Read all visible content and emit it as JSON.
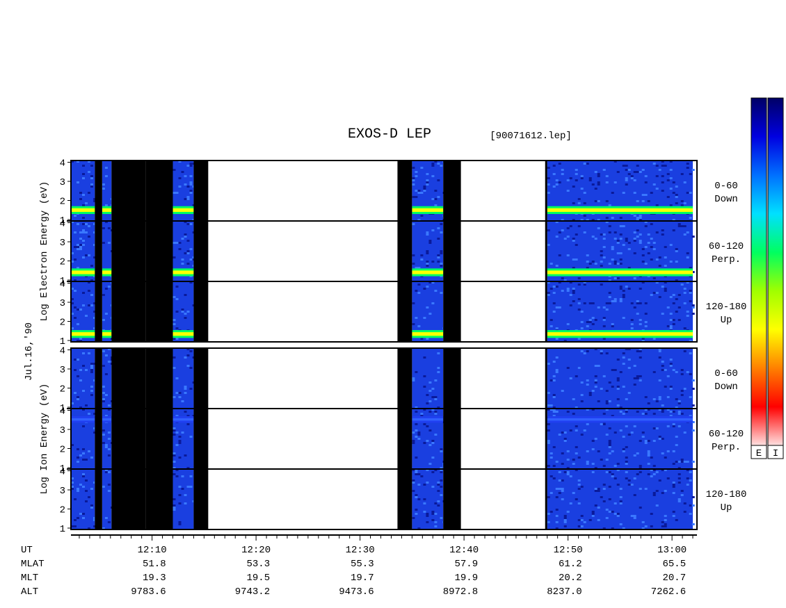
{
  "chart_data": {
    "type": "heatmap",
    "title": "EXOS-D LEP",
    "subtitle": "[90071612.lep]",
    "date_label": "Jul.16,'90",
    "upper_panel": {
      "ylabel": "Log Electron Energy (eV)",
      "channels": [
        {
          "label": [
            "0-60",
            "Down"
          ],
          "yticks": [
            "1",
            "2",
            "3",
            "4"
          ]
        },
        {
          "label": [
            "60-120",
            "Perp."
          ],
          "yticks": [
            "1",
            "2",
            "3",
            "4"
          ]
        },
        {
          "label": [
            "120-180",
            "Up"
          ],
          "yticks": [
            "1",
            "2",
            "3",
            "4"
          ]
        }
      ]
    },
    "lower_panel": {
      "ylabel": "Log Ion Energy (eV)",
      "channels": [
        {
          "label": [
            "0-60",
            "Down"
          ],
          "yticks": [
            "1",
            "2",
            "3",
            "4"
          ]
        },
        {
          "label": [
            "60-120",
            "Perp."
          ],
          "yticks": [
            "1",
            "2",
            "3",
            "4"
          ]
        },
        {
          "label": [
            "120-180",
            "Up"
          ],
          "yticks": [
            "1",
            "2",
            "3",
            "4"
          ]
        }
      ]
    },
    "ylim": [
      1,
      4
    ],
    "x_range_minutes": [
      2.2,
      62.4
    ],
    "x_ticks": [
      {
        "minute": 10,
        "ut": "12:10",
        "mlat": "51.8",
        "mlt": "19.3",
        "alt": "9783.6"
      },
      {
        "minute": 20,
        "ut": "12:20",
        "mlat": "53.3",
        "mlt": "19.5",
        "alt": "9743.2"
      },
      {
        "minute": 30,
        "ut": "12:30",
        "mlat": "55.3",
        "mlt": "19.7",
        "alt": "9473.6"
      },
      {
        "minute": 40,
        "ut": "12:40",
        "mlat": "57.9",
        "mlt": "19.9",
        "alt": "8972.8"
      },
      {
        "minute": 50,
        "ut": "12:50",
        "mlat": "61.2",
        "mlt": "20.2",
        "alt": "8237.0"
      },
      {
        "minute": 60,
        "ut": "13:00",
        "mlat": "65.5",
        "mlt": "20.7",
        "alt": "7262.6"
      }
    ],
    "row_labels": [
      "UT",
      "MLAT",
      "MLT",
      "ALT"
    ],
    "data_intervals_minutes": [
      [
        2.2,
        4.5
      ],
      [
        5.2,
        6.1
      ],
      [
        12.0,
        14.0
      ],
      [
        35.0,
        38.0
      ],
      [
        48.0,
        62.0
      ]
    ],
    "no_data_black_minutes": [
      [
        4.5,
        5.2
      ],
      [
        6.1,
        9.4
      ],
      [
        9.4,
        12.0
      ],
      [
        14.0,
        15.4
      ],
      [
        33.6,
        35.0
      ],
      [
        38.0,
        39.7
      ],
      [
        47.8,
        48.0
      ]
    ],
    "colorbars": [
      "E",
      "I"
    ],
    "colorbar_colors": [
      "#000066",
      "#0000e0",
      "#0070ff",
      "#00e0ff",
      "#00ff60",
      "#a0ff00",
      "#ffff00",
      "#ff8000",
      "#ff0000",
      "#ffe0e0"
    ]
  }
}
